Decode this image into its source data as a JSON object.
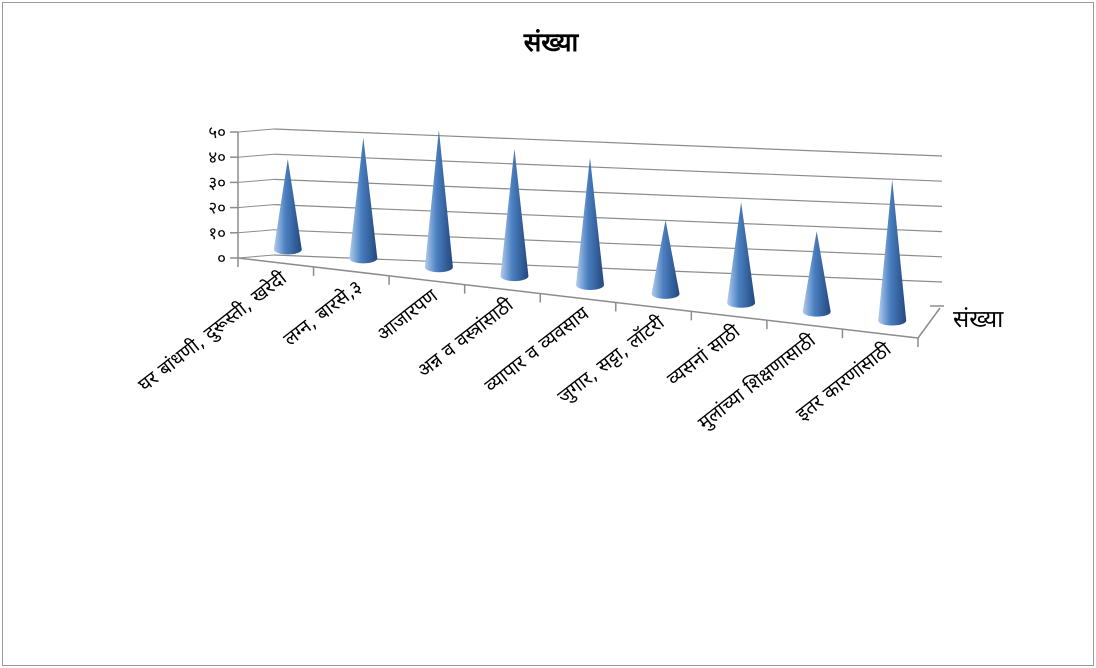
{
  "chart_data": {
    "type": "bar",
    "shape": "3d-cone",
    "title": "संख्या",
    "categories": [
      "घर बांधणी, दुरूस्ती, खरेदी",
      "लग्न, बारसे,३",
      "आजारपण",
      "अन्न व वस्त्रांसाठी",
      "व्यापार व व्यवसाय",
      "जुगार, सट्टा, लॉटरी",
      "व्यसनां साठी",
      "मुलांच्या शिक्षणासाठी",
      "इतर कारणांसाठी"
    ],
    "series": [
      {
        "name": "संख्या",
        "values": [
          27,
          36,
          41,
          38,
          38,
          22,
          30,
          24,
          42
        ]
      }
    ],
    "y_ticks": [
      "०",
      "१०",
      "२०",
      "३०",
      "४०",
      "५०"
    ],
    "ylim": [
      0,
      50
    ],
    "grid": true,
    "legend": "none",
    "colors": {
      "cone": "#4a7fc0",
      "cone_light": "#b3cdef",
      "cone_dark": "#23487e",
      "grid": "#8c8c8c"
    }
  }
}
